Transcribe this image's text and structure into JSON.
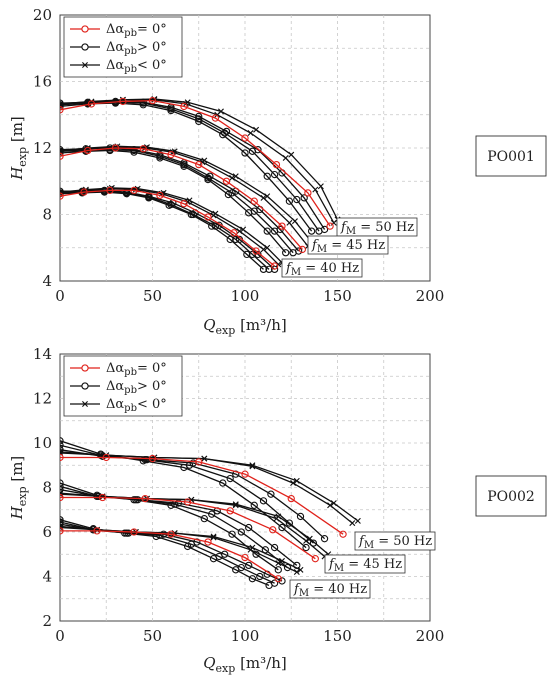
{
  "chart_data": [
    {
      "type": "line",
      "panel_label": "PO001",
      "xlabel": {
        "main": "Q",
        "sub": "exp",
        "unit": " [m³/h]"
      },
      "ylabel": {
        "main": "H",
        "sub": "exp",
        "unit": " [m]"
      },
      "xlim": [
        0,
        200
      ],
      "ylim": [
        4,
        20
      ],
      "xticks": [
        0,
        50,
        100,
        150,
        200
      ],
      "yticks": [
        4,
        8,
        12,
        16,
        20
      ],
      "grid": true,
      "legend": {
        "position": "top-left",
        "entries": [
          {
            "label": "Δα",
            "sub": "pb",
            "rel": "= 0°",
            "color": "#e0221b",
            "marker": "circle"
          },
          {
            "label": "Δα",
            "sub": "pb",
            "rel": "> 0°",
            "color": "#111111",
            "marker": "circle"
          },
          {
            "label": "Δα",
            "sub": "pb",
            "rel": "< 0°",
            "color": "#111111",
            "marker": "cross"
          }
        ]
      },
      "freq_labels": [
        {
          "pre": "f",
          "sub": "M",
          "post": " = 50 Hz"
        },
        {
          "pre": "f",
          "sub": "M",
          "post": " = 45 Hz"
        },
        {
          "pre": "f",
          "sub": "M",
          "post": " = 40 Hz"
        }
      ],
      "series": [
        {
          "group": "50Hz",
          "kind": "ref",
          "x": [
            0,
            17,
            34,
            50,
            67,
            84,
            100,
            117,
            134,
            146
          ],
          "y": [
            14.3,
            14.65,
            14.8,
            14.85,
            14.5,
            13.8,
            12.6,
            11.0,
            9.3,
            7.3
          ]
        },
        {
          "group": "50Hz",
          "kind": "pos",
          "x": [
            0,
            15,
            30,
            45,
            60,
            75,
            88,
            100,
            112,
            124,
            136
          ],
          "y": [
            14.5,
            14.65,
            14.7,
            14.6,
            14.25,
            13.6,
            12.8,
            11.7,
            10.3,
            8.8,
            7.0
          ]
        },
        {
          "group": "50Hz",
          "kind": "pos",
          "x": [
            0,
            15,
            30,
            45,
            60,
            75,
            89,
            104,
            116,
            128,
            140
          ],
          "y": [
            14.6,
            14.7,
            14.75,
            14.7,
            14.35,
            13.75,
            12.9,
            11.8,
            10.4,
            8.9,
            7.0
          ]
        },
        {
          "group": "50Hz",
          "kind": "pos",
          "x": [
            0,
            15,
            30,
            45,
            60,
            75,
            90,
            107,
            120,
            132,
            143
          ],
          "y": [
            14.7,
            14.75,
            14.8,
            14.75,
            14.45,
            13.9,
            13.0,
            11.9,
            10.5,
            9.0,
            7.1
          ]
        },
        {
          "group": "50Hz",
          "kind": "neg",
          "x": [
            0,
            17,
            34,
            51,
            68,
            85,
            103,
            122,
            138,
            148
          ],
          "y": [
            14.6,
            14.75,
            14.9,
            14.9,
            14.65,
            14.0,
            12.9,
            11.4,
            9.5,
            7.5
          ]
        },
        {
          "group": "50Hz",
          "kind": "neg",
          "x": [
            0,
            17,
            34,
            51,
            69,
            87,
            106,
            125,
            141,
            150
          ],
          "y": [
            14.65,
            14.8,
            14.9,
            14.95,
            14.75,
            14.2,
            13.1,
            11.6,
            9.7,
            7.7
          ]
        },
        {
          "group": "45Hz",
          "kind": "ref",
          "x": [
            0,
            15,
            30,
            45,
            60,
            75,
            90,
            105,
            120,
            131
          ],
          "y": [
            11.5,
            11.85,
            12.0,
            11.95,
            11.6,
            11.0,
            10.0,
            8.8,
            7.3,
            5.9
          ]
        },
        {
          "group": "45Hz",
          "kind": "pos",
          "x": [
            0,
            14,
            27,
            40,
            54,
            67,
            80,
            91,
            102,
            112,
            122
          ],
          "y": [
            11.7,
            11.8,
            11.85,
            11.75,
            11.4,
            10.9,
            10.1,
            9.2,
            8.1,
            7.0,
            5.7
          ]
        },
        {
          "group": "45Hz",
          "kind": "pos",
          "x": [
            0,
            14,
            27,
            40,
            54,
            67,
            80,
            93,
            105,
            116,
            126
          ],
          "y": [
            11.8,
            11.85,
            11.9,
            11.85,
            11.5,
            11.0,
            10.2,
            9.3,
            8.2,
            7.0,
            5.7
          ]
        },
        {
          "group": "45Hz",
          "kind": "pos",
          "x": [
            0,
            14,
            27,
            40,
            54,
            67,
            81,
            95,
            108,
            119,
            129
          ],
          "y": [
            11.9,
            11.95,
            12.0,
            11.9,
            11.6,
            11.1,
            10.3,
            9.4,
            8.3,
            7.1,
            5.8
          ]
        },
        {
          "group": "45Hz",
          "kind": "neg",
          "x": [
            0,
            15,
            30,
            46,
            61,
            77,
            93,
            110,
            124,
            134
          ],
          "y": [
            11.8,
            11.95,
            12.05,
            12.0,
            11.75,
            11.15,
            10.2,
            9.0,
            7.5,
            6.1
          ]
        },
        {
          "group": "45Hz",
          "kind": "neg",
          "x": [
            0,
            15,
            31,
            47,
            62,
            78,
            95,
            112,
            127,
            137
          ],
          "y": [
            11.85,
            12.0,
            12.1,
            12.05,
            11.8,
            11.25,
            10.3,
            9.1,
            7.6,
            6.2
          ]
        },
        {
          "group": "40Hz",
          "kind": "ref",
          "x": [
            0,
            13,
            27,
            40,
            54,
            67,
            80,
            94,
            106,
            116
          ],
          "y": [
            9.1,
            9.35,
            9.45,
            9.45,
            9.15,
            8.65,
            7.85,
            6.9,
            5.8,
            4.9
          ]
        },
        {
          "group": "40Hz",
          "kind": "pos",
          "x": [
            0,
            12,
            24,
            36,
            48,
            59,
            71,
            82,
            92,
            101,
            110
          ],
          "y": [
            9.25,
            9.3,
            9.35,
            9.25,
            9.0,
            8.55,
            8.0,
            7.3,
            6.5,
            5.6,
            4.7
          ]
        },
        {
          "group": "40Hz",
          "kind": "pos",
          "x": [
            0,
            12,
            24,
            36,
            48,
            60,
            72,
            84,
            95,
            104,
            113
          ],
          "y": [
            9.3,
            9.35,
            9.4,
            9.3,
            9.05,
            8.6,
            8.0,
            7.3,
            6.5,
            5.6,
            4.7
          ]
        },
        {
          "group": "40Hz",
          "kind": "pos",
          "x": [
            0,
            12,
            24,
            36,
            48,
            61,
            73,
            86,
            97,
            107,
            116
          ],
          "y": [
            9.4,
            9.4,
            9.45,
            9.35,
            9.1,
            8.7,
            8.1,
            7.35,
            6.5,
            5.6,
            4.7
          ]
        },
        {
          "group": "40Hz",
          "kind": "neg",
          "x": [
            0,
            14,
            27,
            41,
            55,
            69,
            83,
            97,
            110,
            118
          ],
          "y": [
            9.3,
            9.45,
            9.55,
            9.5,
            9.25,
            8.75,
            7.95,
            7.0,
            5.9,
            5.0
          ]
        },
        {
          "group": "40Hz",
          "kind": "neg",
          "x": [
            0,
            14,
            28,
            42,
            56,
            70,
            84,
            99,
            112,
            120
          ],
          "y": [
            9.35,
            9.5,
            9.6,
            9.55,
            9.3,
            8.85,
            8.05,
            7.1,
            6.0,
            5.1
          ]
        }
      ]
    },
    {
      "type": "line",
      "panel_label": "PO002",
      "xlabel": {
        "main": "Q",
        "sub": "exp",
        "unit": " [m³/h]"
      },
      "ylabel": {
        "main": "H",
        "sub": "exp",
        "unit": " [m]"
      },
      "xlim": [
        0,
        200
      ],
      "ylim": [
        2,
        14
      ],
      "xticks": [
        0,
        50,
        100,
        150,
        200
      ],
      "yticks": [
        2,
        4,
        6,
        8,
        10,
        12,
        14
      ],
      "grid": true,
      "legend": {
        "position": "top-left",
        "entries": [
          {
            "label": "Δα",
            "sub": "pb",
            "rel": "= 0°",
            "color": "#e0221b",
            "marker": "circle"
          },
          {
            "label": "Δα",
            "sub": "pb",
            "rel": "> 0°",
            "color": "#111111",
            "marker": "circle"
          },
          {
            "label": "Δα",
            "sub": "pb",
            "rel": "< 0°",
            "color": "#111111",
            "marker": "cross"
          }
        ]
      },
      "freq_labels": [
        {
          "pre": "f",
          "sub": "M",
          "post": " = 50 Hz"
        },
        {
          "pre": "f",
          "sub": "M",
          "post": " = 45 Hz"
        },
        {
          "pre": "f",
          "sub": "M",
          "post": " = 40 Hz"
        }
      ],
      "series": [
        {
          "group": "50Hz",
          "kind": "ref",
          "x": [
            0,
            25,
            50,
            75,
            100,
            125,
            153
          ],
          "y": [
            9.35,
            9.35,
            9.3,
            9.15,
            8.6,
            7.5,
            5.9
          ]
        },
        {
          "group": "50Hz",
          "kind": "pos",
          "x": [
            0,
            22,
            45,
            67,
            88,
            105,
            120,
            133
          ],
          "y": [
            10.1,
            9.5,
            9.2,
            8.9,
            8.2,
            7.2,
            6.2,
            5.3
          ]
        },
        {
          "group": "50Hz",
          "kind": "pos",
          "x": [
            0,
            22,
            46,
            70,
            92,
            110,
            124,
            137
          ],
          "y": [
            9.9,
            9.45,
            9.25,
            9.0,
            8.4,
            7.4,
            6.4,
            5.5
          ]
        },
        {
          "group": "50Hz",
          "kind": "pos",
          "x": [
            0,
            23,
            47,
            72,
            95,
            114,
            130,
            143
          ],
          "y": [
            9.7,
            9.4,
            9.25,
            9.1,
            8.6,
            7.7,
            6.7,
            5.7
          ]
        },
        {
          "group": "50Hz",
          "kind": "neg",
          "x": [
            0,
            25,
            51,
            78,
            104,
            126,
            146,
            158
          ],
          "y": [
            9.6,
            9.45,
            9.35,
            9.3,
            8.95,
            8.2,
            7.2,
            6.4
          ]
        },
        {
          "group": "50Hz",
          "kind": "neg",
          "x": [
            0,
            25,
            51,
            78,
            104,
            128,
            148,
            161
          ],
          "y": [
            9.55,
            9.45,
            9.35,
            9.3,
            9.0,
            8.3,
            7.3,
            6.5
          ]
        },
        {
          "group": "45Hz",
          "kind": "ref",
          "x": [
            0,
            23,
            46,
            69,
            92,
            115,
            138
          ],
          "y": [
            7.55,
            7.55,
            7.5,
            7.35,
            6.95,
            6.1,
            4.8
          ]
        },
        {
          "group": "45Hz",
          "kind": "pos",
          "x": [
            0,
            20,
            40,
            60,
            78,
            93,
            106,
            118
          ],
          "y": [
            8.2,
            7.65,
            7.45,
            7.2,
            6.6,
            5.9,
            5.0,
            4.3
          ]
        },
        {
          "group": "45Hz",
          "kind": "pos",
          "x": [
            0,
            20,
            41,
            62,
            82,
            98,
            111,
            123
          ],
          "y": [
            8.05,
            7.6,
            7.45,
            7.25,
            6.8,
            6.0,
            5.2,
            4.4
          ]
        },
        {
          "group": "45Hz",
          "kind": "pos",
          "x": [
            0,
            21,
            42,
            64,
            85,
            102,
            116,
            128
          ],
          "y": [
            7.9,
            7.6,
            7.45,
            7.3,
            6.95,
            6.2,
            5.3,
            4.5
          ]
        },
        {
          "group": "45Hz",
          "kind": "neg",
          "x": [
            0,
            23,
            47,
            71,
            95,
            117,
            133,
            143
          ],
          "y": [
            7.75,
            7.6,
            7.5,
            7.45,
            7.2,
            6.6,
            5.6,
            4.9
          ]
        },
        {
          "group": "45Hz",
          "kind": "neg",
          "x": [
            0,
            23,
            47,
            71,
            95,
            118,
            135,
            145
          ],
          "y": [
            7.7,
            7.6,
            7.5,
            7.45,
            7.25,
            6.7,
            5.7,
            5.0
          ]
        },
        {
          "group": "40Hz",
          "kind": "ref",
          "x": [
            0,
            20,
            40,
            60,
            80,
            100,
            118
          ],
          "y": [
            6.05,
            6.05,
            6.0,
            5.9,
            5.55,
            4.85,
            3.9
          ]
        },
        {
          "group": "40Hz",
          "kind": "pos",
          "x": [
            0,
            18,
            35,
            52,
            69,
            83,
            95,
            104,
            113
          ],
          "y": [
            6.55,
            6.15,
            5.95,
            5.8,
            5.35,
            4.8,
            4.3,
            3.9,
            3.6
          ]
        },
        {
          "group": "40Hz",
          "kind": "pos",
          "x": [
            0,
            18,
            36,
            54,
            71,
            86,
            98,
            108,
            116
          ],
          "y": [
            6.45,
            6.1,
            5.95,
            5.85,
            5.45,
            4.9,
            4.4,
            4.0,
            3.7
          ]
        },
        {
          "group": "40Hz",
          "kind": "pos",
          "x": [
            0,
            18,
            37,
            56,
            74,
            89,
            102,
            112,
            120
          ],
          "y": [
            6.35,
            6.1,
            5.95,
            5.9,
            5.55,
            5.0,
            4.5,
            4.1,
            3.8
          ]
        },
        {
          "group": "40Hz",
          "kind": "neg",
          "x": [
            0,
            20,
            41,
            62,
            83,
            103,
            118,
            128
          ],
          "y": [
            6.25,
            6.1,
            6.0,
            5.95,
            5.75,
            5.2,
            4.6,
            4.2
          ]
        },
        {
          "group": "40Hz",
          "kind": "neg",
          "x": [
            0,
            20,
            41,
            62,
            83,
            104,
            120,
            130
          ],
          "y": [
            6.2,
            6.1,
            6.0,
            5.95,
            5.8,
            5.3,
            4.7,
            4.3
          ]
        }
      ]
    }
  ]
}
